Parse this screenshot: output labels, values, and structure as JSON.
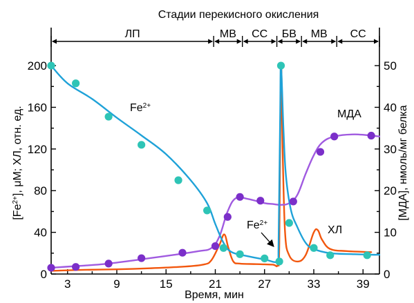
{
  "chart_data": {
    "type": "line",
    "title": "Стадии перекисного окисления",
    "xlabel": "Время, мин",
    "ylabel_left": "[Fe2+], μM; ХЛ, отн. ед.",
    "ylabel_right": "[МДА], нмоль/мг белка",
    "xlim": [
      1,
      41
    ],
    "ylim_left": [
      0,
      210
    ],
    "ylim_right": [
      0,
      52.5
    ],
    "x_ticks": [
      3,
      9,
      15,
      21,
      27,
      33,
      39
    ],
    "y_left_ticks": [
      0,
      40,
      80,
      120,
      160,
      200
    ],
    "y_right_ticks": [
      0,
      10,
      20,
      30,
      40,
      50
    ],
    "stages": [
      {
        "label": "ЛП",
        "from": 1,
        "to": 20.8
      },
      {
        "label": "МВ",
        "from": 20.8,
        "to": 24.3
      },
      {
        "label": "СС",
        "from": 24.3,
        "to": 28.5
      },
      {
        "label": "БВ",
        "from": 28.5,
        "to": 31.5
      },
      {
        "label": "МВ",
        "from": 31.5,
        "to": 35.8
      },
      {
        "label": "СС",
        "from": 35.8,
        "to": 41
      }
    ],
    "series": [
      {
        "name": "Fe2+",
        "axis": "left",
        "color": "#1fa2d8",
        "marker_color": "#2ec4b6",
        "line": [
          [
            1,
            200
          ],
          [
            3,
            183
          ],
          [
            6,
            168
          ],
          [
            9,
            150
          ],
          [
            12,
            133
          ],
          [
            15,
            115
          ],
          [
            18,
            90
          ],
          [
            20,
            68
          ],
          [
            21,
            48
          ],
          [
            22,
            30
          ],
          [
            23,
            21
          ],
          [
            25,
            17
          ],
          [
            27,
            14
          ],
          [
            28.6,
            12
          ],
          [
            28.7,
            25
          ],
          [
            28.9,
            150
          ],
          [
            29.0,
            201
          ],
          [
            29.3,
            140
          ],
          [
            29.6,
            95
          ],
          [
            30.2,
            62
          ],
          [
            31,
            45
          ],
          [
            32,
            30
          ],
          [
            33,
            24
          ],
          [
            35,
            20
          ],
          [
            38,
            19
          ],
          [
            40,
            18.5
          ],
          [
            41,
            18.5
          ]
        ],
        "points": [
          [
            1,
            200
          ],
          [
            4,
            183
          ],
          [
            8,
            151
          ],
          [
            12,
            124
          ],
          [
            16.5,
            90
          ],
          [
            20,
            61
          ],
          [
            22,
            25
          ],
          [
            24,
            19
          ],
          [
            27,
            15
          ],
          [
            28.8,
            12
          ],
          [
            29,
            200
          ],
          [
            30,
            49
          ],
          [
            33,
            25
          ],
          [
            35,
            18
          ],
          [
            39.5,
            18
          ]
        ]
      },
      {
        "name": "МДА",
        "axis": "right",
        "color": "#a05ae0",
        "marker_color": "#7b2fc9",
        "line": [
          [
            1,
            1.5
          ],
          [
            4,
            1.9
          ],
          [
            7,
            2.3
          ],
          [
            10,
            3.0
          ],
          [
            13,
            3.8
          ],
          [
            16,
            4.6
          ],
          [
            19,
            5.5
          ],
          [
            20.5,
            6.2
          ],
          [
            21.5,
            9
          ],
          [
            22.5,
            15
          ],
          [
            23.5,
            18.2
          ],
          [
            25,
            18
          ],
          [
            27,
            17
          ],
          [
            28,
            16.8
          ],
          [
            29,
            16.6
          ],
          [
            30,
            17
          ],
          [
            31,
            19
          ],
          [
            32,
            24
          ],
          [
            33,
            28.5
          ],
          [
            34,
            31.5
          ],
          [
            35.5,
            33
          ],
          [
            38,
            33.5
          ],
          [
            41,
            33
          ]
        ],
        "points": [
          [
            1,
            1.5
          ],
          [
            4,
            1.7
          ],
          [
            8,
            2.5
          ],
          [
            12,
            3.8
          ],
          [
            17,
            5.1
          ],
          [
            21,
            6.7
          ],
          [
            22.5,
            13.7
          ],
          [
            24,
            18.5
          ],
          [
            26.5,
            17.6
          ],
          [
            30.5,
            17.4
          ],
          [
            33.8,
            29.3
          ],
          [
            35.5,
            33
          ],
          [
            40,
            33.2
          ]
        ]
      },
      {
        "name": "ХЛ",
        "axis": "left",
        "color": "#f2570e",
        "line": [
          [
            1,
            3
          ],
          [
            5,
            4
          ],
          [
            9,
            4.5
          ],
          [
            13,
            5.5
          ],
          [
            17,
            7
          ],
          [
            19.5,
            9
          ],
          [
            20.5,
            13
          ],
          [
            21.5,
            28
          ],
          [
            22.1,
            38
          ],
          [
            22.6,
            25
          ],
          [
            23.2,
            12
          ],
          [
            24,
            10
          ],
          [
            26,
            9.5
          ],
          [
            28,
            9
          ],
          [
            28.6,
            9
          ],
          [
            28.8,
            30
          ],
          [
            29.0,
            200
          ],
          [
            29.2,
            120
          ],
          [
            29.5,
            40
          ],
          [
            30,
            18
          ],
          [
            31,
            12
          ],
          [
            32,
            18
          ],
          [
            33,
            40
          ],
          [
            33.5,
            42
          ],
          [
            34,
            33
          ],
          [
            35,
            24
          ],
          [
            37,
            22
          ],
          [
            40,
            21
          ]
        ]
      }
    ],
    "annotations": {
      "fe_label_main": "Fe",
      "fe_label_main_sup": "2+",
      "fe_label_arrow": "Fe",
      "fe_label_arrow_sup": "2+",
      "mda_label": "МДА",
      "hl_label": "ХЛ"
    }
  }
}
